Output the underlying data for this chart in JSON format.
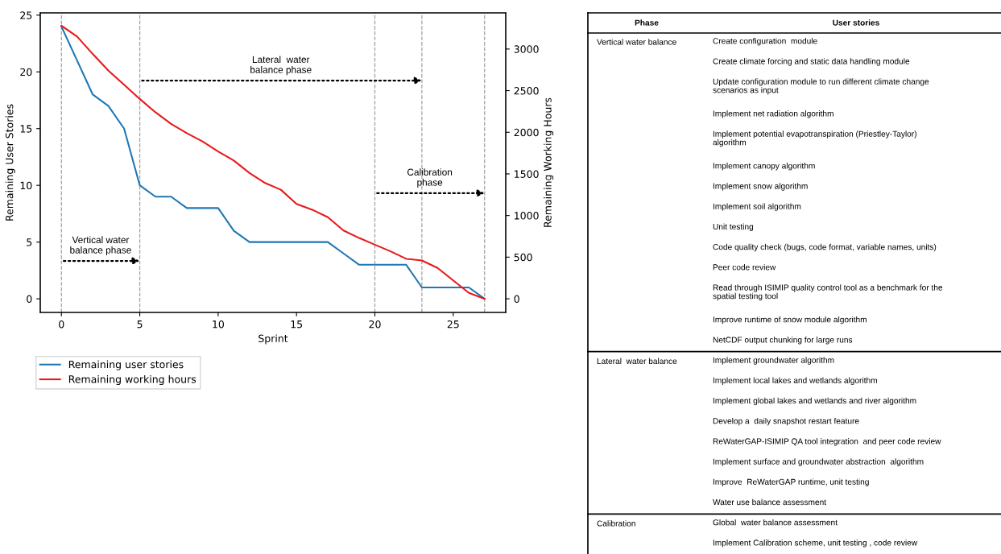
{
  "chart_data": [
    {
      "type": "line",
      "xlabel": "Sprint",
      "ylabel": "Remaining User Stories",
      "y2label": "Remaining Working Hours",
      "x": [
        0,
        1,
        2,
        3,
        4,
        5,
        6,
        7,
        8,
        9,
        10,
        11,
        12,
        13,
        14,
        15,
        16,
        17,
        18,
        19,
        20,
        21,
        22,
        23,
        24,
        25,
        26,
        27
      ],
      "series": [
        {
          "name": "Remaining user stories",
          "color": "#1f77b4",
          "values": [
            24,
            21,
            18,
            17,
            15,
            10,
            9,
            9,
            8,
            8,
            8,
            6,
            5,
            5,
            5,
            5,
            5,
            5,
            4,
            3,
            3,
            3,
            3,
            1,
            1,
            1,
            1,
            0
          ]
        },
        {
          "name": "Remaining working hours",
          "color": "#e8191c",
          "axis": "y2",
          "values": [
            3280,
            3150,
            2940,
            2740,
            2570,
            2400,
            2240,
            2100,
            1990,
            1890,
            1770,
            1660,
            1510,
            1390,
            1310,
            1140,
            1070,
            980,
            820,
            730,
            650,
            570,
            480,
            460,
            370,
            220,
            70,
            0
          ]
        }
      ],
      "xlim": [
        -1.35,
        28.35
      ],
      "xticks": [
        0,
        5,
        10,
        15,
        20,
        25
      ],
      "ylim": [
        -1.2,
        25.2
      ],
      "yticks": [
        0,
        5,
        10,
        15,
        20,
        25
      ],
      "y2lim": [
        -164,
        3434
      ],
      "y2ticks": [
        0,
        500,
        1000,
        1500,
        2000,
        2500,
        3000
      ],
      "ref_lines": [
        {
          "axis": "x",
          "value": 0,
          "color": "#a0a0a0",
          "line_style": "dashed"
        },
        {
          "axis": "x",
          "value": 5,
          "color": "#a0a0a0",
          "line_style": "dashed"
        },
        {
          "axis": "x",
          "value": 20,
          "color": "#a0a0a0",
          "line_style": "dashed"
        },
        {
          "axis": "x",
          "value": 23,
          "color": "#a0a0a0",
          "line_style": "dashed"
        },
        {
          "axis": "x",
          "value": 27,
          "color": "#a0a0a0",
          "line_style": "dashed"
        }
      ],
      "annotations": [
        "Vertical water\nbalance phase",
        "Lateral  water\nbalance phase",
        "Calibration\nphase"
      ],
      "grid": false,
      "legend": "bottom left",
      "marker": "none",
      "line_style": "solid"
    },
    {
      "type": "other",
      "annotations": [
        "Phase",
        "User stories",
        "Vertical water balance",
        "Create configuration  module",
        "Create climate forcing and static data handling module",
        "Update configuration module to run different climate change\nscenarios as input",
        "Implement net radiation algorithm",
        "Implement potential evapotranspiration (Priestley-Taylor)\nalgorithm",
        "Implement canopy algorithm",
        "Implement snow algorithm",
        "Implement soil algorithm",
        "Unit testing",
        "Code quality check (bugs, code format, variable names, units)",
        "Peer code review",
        "Read through ISIMIP quality control tool as a benchmark for the\nspatial testing tool",
        "Improve runtime of snow module algorithm",
        "NetCDF output chunking for large runs",
        "Lateral  water balance",
        "Implement groundwater algorithm",
        "Implement local lakes and wetlands algorithm",
        "Implement global lakes and wetlands and river algorithm",
        "Develop a  daily snapshot restart feature",
        "ReWaterGAP-ISIMIP QA tool integration  and peer code review",
        "Implement surface and groundwater abstraction  algorithm",
        "Improve  ReWaterGAP runtime, unit testing",
        "Water use balance assessment",
        "Calibration",
        "Global  water balance assessment",
        "Implement Calibration scheme, unit testing , code review"
      ]
    }
  ]
}
